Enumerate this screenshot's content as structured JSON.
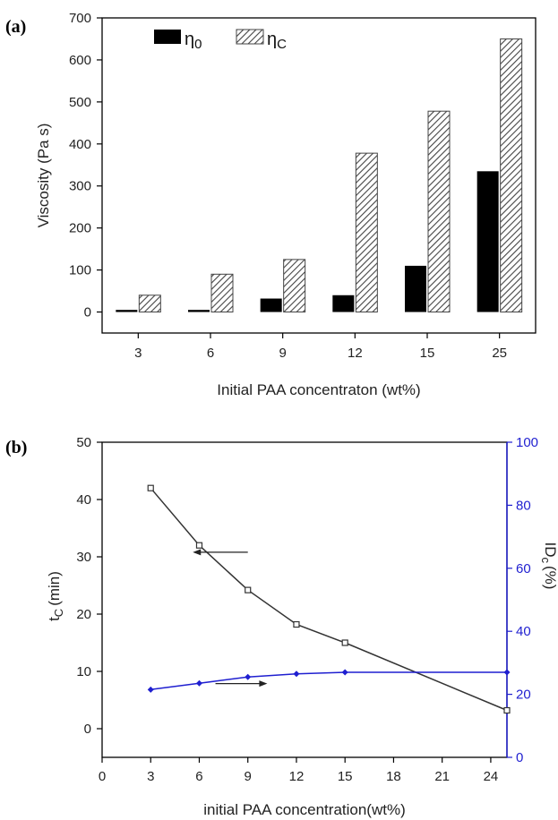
{
  "chart_data": [
    {
      "panel": "(a)",
      "type": "bar",
      "categories": [
        "3",
        "6",
        "9",
        "12",
        "15",
        "25"
      ],
      "series": [
        {
          "name": "η0",
          "values": [
            5,
            5,
            32,
            40,
            110,
            335
          ],
          "color": "#000000",
          "fill": "solid"
        },
        {
          "name": "ηc",
          "values": [
            40,
            90,
            125,
            378,
            478,
            650
          ],
          "color": "#555555",
          "fill": "hatched"
        }
      ],
      "xlabel": "Initial PAA concentraton (wt%)",
      "ylabel": "Viscosity (Pa s)",
      "ylim": [
        -50,
        700
      ],
      "yticks": [
        0,
        100,
        200,
        300,
        400,
        500,
        600,
        700
      ],
      "legend": "top-left",
      "grid": false
    },
    {
      "panel": "(b)",
      "type": "line",
      "xlabel": "initial PAA concentration(wt%)",
      "xlim": [
        0,
        25
      ],
      "xticks": [
        0,
        3,
        6,
        9,
        12,
        15,
        18,
        21,
        24
      ],
      "ylabel_left": "t",
      "ylabel_left_sub": "C",
      "ylabel_left_unit": "(min)",
      "ylim_left": [
        -5,
        50
      ],
      "yticks_left": [
        0,
        10,
        20,
        30,
        40,
        50
      ],
      "ylabel_right": "ID",
      "ylabel_right_sub": "c",
      "ylabel_right_unit": "(%)",
      "ylim_right": [
        0,
        100
      ],
      "yticks_right": [
        0,
        20,
        40,
        60,
        80,
        100
      ],
      "right_axis_color": "#1f1fd0",
      "grid": false,
      "series": [
        {
          "axis": "left",
          "x": [
            3,
            6,
            9,
            12,
            15,
            25
          ],
          "y": [
            42,
            32,
            24.2,
            18.2,
            15,
            3.2
          ],
          "color": "#333333",
          "marker": "open-square"
        },
        {
          "axis": "right",
          "x": [
            3,
            6,
            9,
            12,
            15,
            25
          ],
          "y": [
            21.5,
            23.5,
            25.5,
            26.5,
            27,
            27
          ],
          "color": "#1f1fd0",
          "marker": "filled-diamond"
        }
      ],
      "annotations": [
        {
          "type": "arrow",
          "direction": "left",
          "target_axis": "left"
        },
        {
          "type": "arrow",
          "direction": "right",
          "target_axis": "right"
        }
      ]
    }
  ],
  "legend_labels": {
    "eta0_main": "η",
    "eta0_sub": "0",
    "etac_main": "η",
    "etac_sub": "C"
  }
}
